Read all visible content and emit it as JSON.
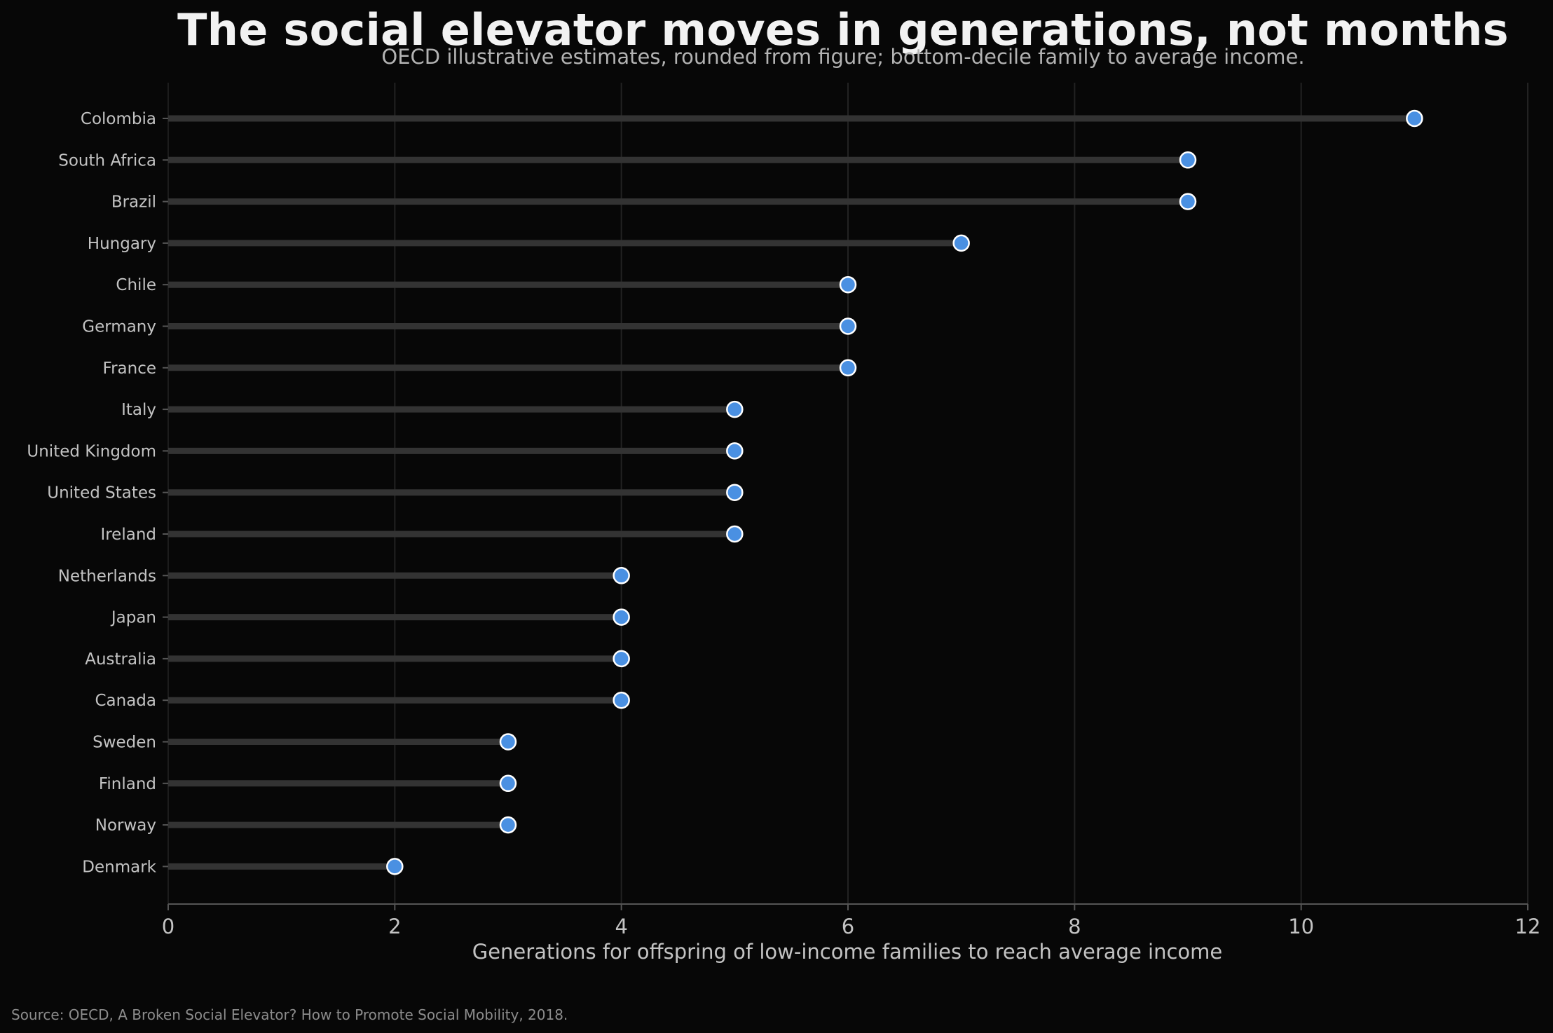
{
  "title": "The social elevator moves in generations, not months",
  "subtitle": "OECD illustrative estimates, rounded from figure; bottom-decile family to average income.",
  "source": "Source: OECD, A Broken Social Elevator? How to Promote Social Mobility, 2018.",
  "colors": {
    "background": "#070707",
    "stem": "#333333",
    "marker": "#4a90e2",
    "marker_edge": "#ffffff",
    "grid": "#222222",
    "axis": "#555555"
  },
  "chart_data": {
    "type": "lollipop",
    "orientation": "horizontal",
    "categories": [
      "Colombia",
      "South Africa",
      "Brazil",
      "Hungary",
      "Chile",
      "Germany",
      "France",
      "Italy",
      "United Kingdom",
      "United States",
      "Ireland",
      "Netherlands",
      "Japan",
      "Australia",
      "Canada",
      "Sweden",
      "Finland",
      "Norway",
      "Denmark"
    ],
    "values": [
      11,
      9,
      9,
      7,
      6,
      6,
      6,
      5,
      5,
      5,
      5,
      4,
      4,
      4,
      4,
      3,
      3,
      3,
      2
    ],
    "xlabel": "Generations for offspring of low-income families to reach average income",
    "ylabel": "",
    "xlim": [
      0,
      12
    ],
    "xticks": [
      0,
      2,
      4,
      6,
      8,
      10,
      12
    ],
    "grid": "vertical"
  }
}
